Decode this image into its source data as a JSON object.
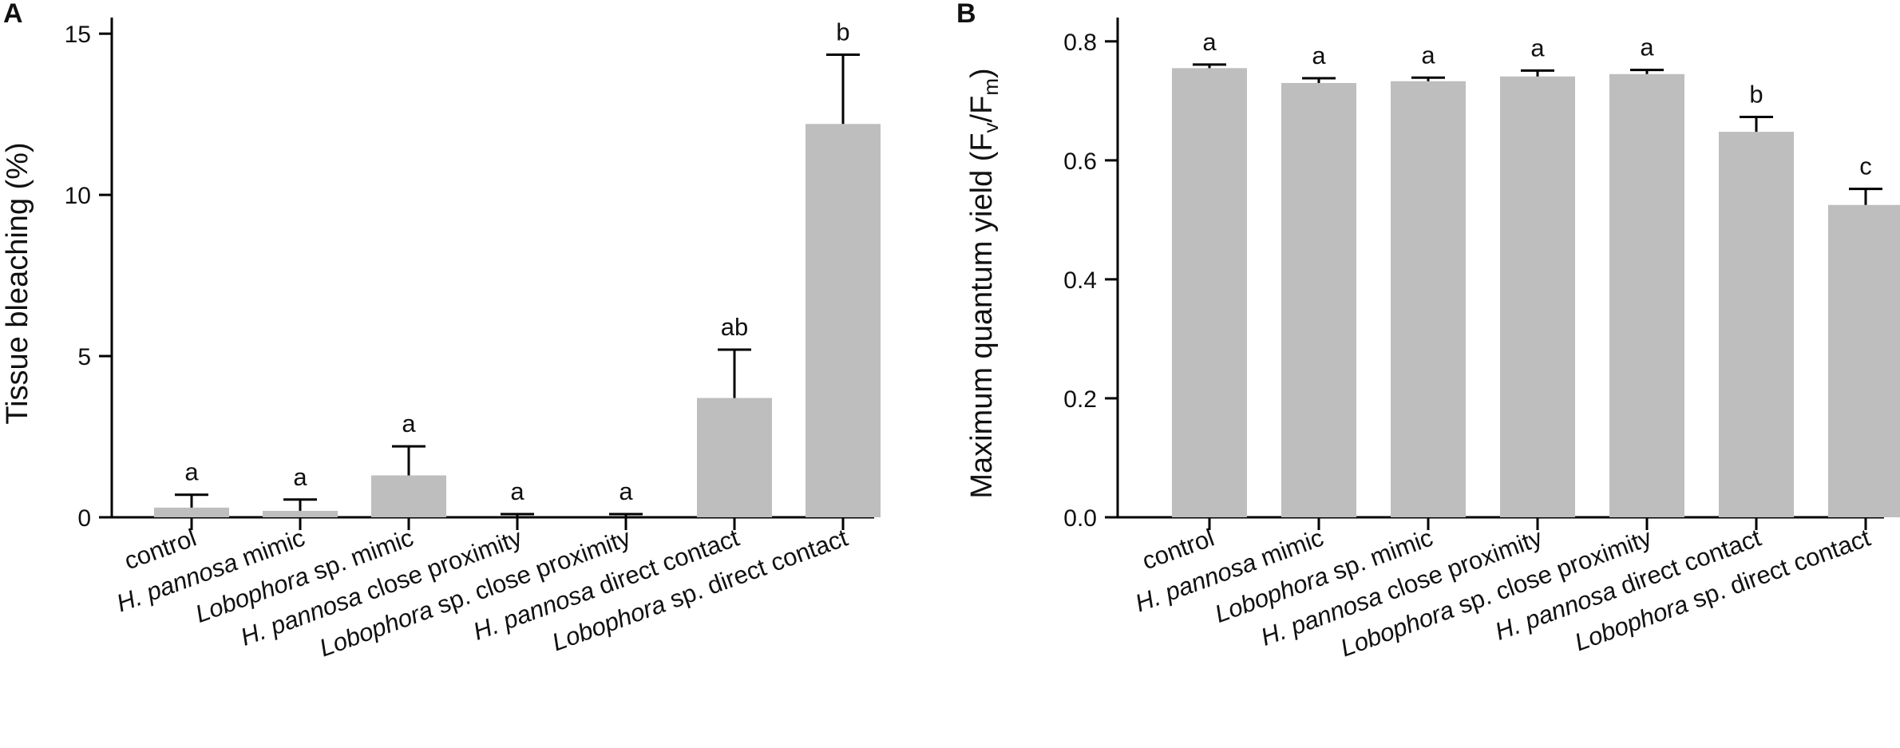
{
  "chart_data": [
    {
      "panel": "A",
      "type": "bar",
      "ylabel": "Tissue bleaching (%)",
      "ylim": [
        0,
        15.5
      ],
      "yticks": [
        0,
        5,
        10,
        15
      ],
      "bar_color": "#bebebe",
      "categories": [
        {
          "parts": [
            {
              "t": "control",
              "i": false
            }
          ]
        },
        {
          "parts": [
            {
              "t": "H. pannosa",
              "i": true
            },
            {
              "t": " mimic",
              "i": false
            }
          ]
        },
        {
          "parts": [
            {
              "t": "Lobophora",
              "i": true
            },
            {
              "t": " sp. mimic",
              "i": false
            }
          ]
        },
        {
          "parts": [
            {
              "t": "H. pannosa",
              "i": true
            },
            {
              "t": " close proximity",
              "i": false
            }
          ]
        },
        {
          "parts": [
            {
              "t": "Lobophora",
              "i": true
            },
            {
              "t": " sp. close proximity",
              "i": false
            }
          ]
        },
        {
          "parts": [
            {
              "t": "H. pannosa",
              "i": true
            },
            {
              "t": " direct contact",
              "i": false
            }
          ]
        },
        {
          "parts": [
            {
              "t": "Lobophora",
              "i": true
            },
            {
              "t": " sp. direct contact",
              "i": false
            }
          ]
        }
      ],
      "values": [
        0.3,
        0.2,
        1.3,
        0.0,
        0.0,
        3.7,
        12.2
      ],
      "errors": [
        0.4,
        0.35,
        0.9,
        0.1,
        0.1,
        1.5,
        2.15
      ],
      "significance": [
        "a",
        "a",
        "a",
        "a",
        "a",
        "ab",
        "b"
      ]
    },
    {
      "panel": "B",
      "type": "bar",
      "ylabel_main": "Maximum quantum yield (F",
      "ylabel_sub1": "v",
      "ylabel_mid": "/F",
      "ylabel_sub2": "m",
      "ylabel_end": ")",
      "ylim": [
        0,
        0.84
      ],
      "yticks": [
        "0.0",
        "0.2",
        "0.4",
        "0.6",
        "0.8"
      ],
      "bar_color": "#bebebe",
      "categories": [
        {
          "parts": [
            {
              "t": "control",
              "i": false
            }
          ]
        },
        {
          "parts": [
            {
              "t": "H. pannosa",
              "i": true
            },
            {
              "t": " mimic",
              "i": false
            }
          ]
        },
        {
          "parts": [
            {
              "t": "Lobophora",
              "i": true
            },
            {
              "t": " sp. mimic",
              "i": false
            }
          ]
        },
        {
          "parts": [
            {
              "t": "H. pannosa",
              "i": true
            },
            {
              "t": " close proximity",
              "i": false
            }
          ]
        },
        {
          "parts": [
            {
              "t": "Lobophora",
              "i": true
            },
            {
              "t": " sp. close proximity",
              "i": false
            }
          ]
        },
        {
          "parts": [
            {
              "t": "H. pannosa",
              "i": true
            },
            {
              "t": " direct contact",
              "i": false
            }
          ]
        },
        {
          "parts": [
            {
              "t": "Lobophora",
              "i": true
            },
            {
              "t": " sp. direct contact",
              "i": false
            }
          ]
        }
      ],
      "values": [
        0.755,
        0.73,
        0.733,
        0.741,
        0.745,
        0.648,
        0.525
      ],
      "errors": [
        0.006,
        0.008,
        0.006,
        0.01,
        0.007,
        0.025,
        0.027
      ],
      "significance": [
        "a",
        "a",
        "a",
        "a",
        "a",
        "b",
        "c"
      ]
    }
  ]
}
